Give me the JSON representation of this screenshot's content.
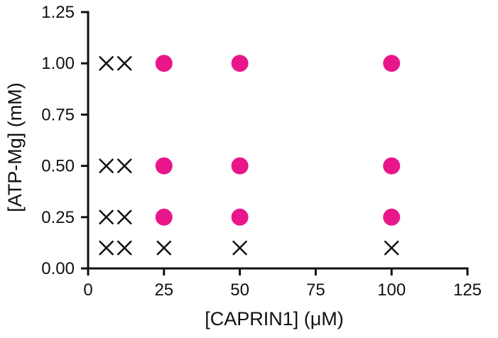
{
  "chart_data": {
    "type": "scatter",
    "title": "",
    "xlabel": "[CAPRIN1] (μM)",
    "ylabel": "[ATP-Mg] (mM)",
    "xlim": [
      0,
      125
    ],
    "ylim": [
      0,
      1.25
    ],
    "x_ticks": [
      "0",
      "25",
      "50",
      "75",
      "100",
      "125"
    ],
    "y_ticks": [
      "0.00",
      "0.25",
      "0.50",
      "0.75",
      "1.00",
      "1.25"
    ],
    "grid": false,
    "legend": "none",
    "colors": {
      "circle": "#e8168a",
      "cross": "#111111",
      "axis": "#111111"
    },
    "series": [
      {
        "marker": "circle",
        "points": [
          [
            25,
            1.0
          ],
          [
            50,
            1.0
          ],
          [
            100,
            1.0
          ],
          [
            25,
            0.5
          ],
          [
            50,
            0.5
          ],
          [
            100,
            0.5
          ],
          [
            25,
            0.25
          ],
          [
            50,
            0.25
          ],
          [
            100,
            0.25
          ]
        ]
      },
      {
        "marker": "cross",
        "points": [
          [
            6,
            1.0
          ],
          [
            12,
            1.0
          ],
          [
            6,
            0.5
          ],
          [
            12,
            0.5
          ],
          [
            6,
            0.25
          ],
          [
            12,
            0.25
          ],
          [
            6,
            0.1
          ],
          [
            12,
            0.1
          ],
          [
            25,
            0.1
          ],
          [
            50,
            0.1
          ],
          [
            100,
            0.1
          ]
        ]
      }
    ]
  }
}
